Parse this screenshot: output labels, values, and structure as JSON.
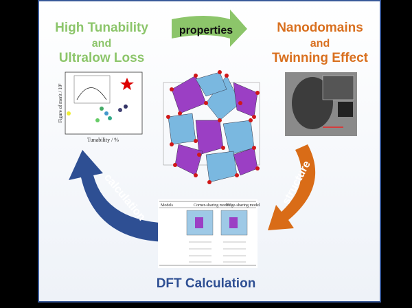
{
  "top_left": {
    "lines": [
      "High Tunability",
      "and",
      "Ultralow Loss"
    ]
  },
  "top_arrow": {
    "label": "properties"
  },
  "top_right": {
    "lines": [
      "Nanodomains",
      "and",
      "Twinning Effect"
    ]
  },
  "right_arrow": {
    "label": "structure"
  },
  "left_arrow": {
    "label": "calculation"
  },
  "bottom": {
    "title": "DFT Calculation"
  },
  "left_inset": {
    "y_label": "Figure of merit / 10²",
    "x_label": "Tunability / %"
  },
  "bottom_inset": {
    "headers": [
      "Models",
      "Corner-sharing model",
      "Edge-sharing model"
    ]
  }
}
